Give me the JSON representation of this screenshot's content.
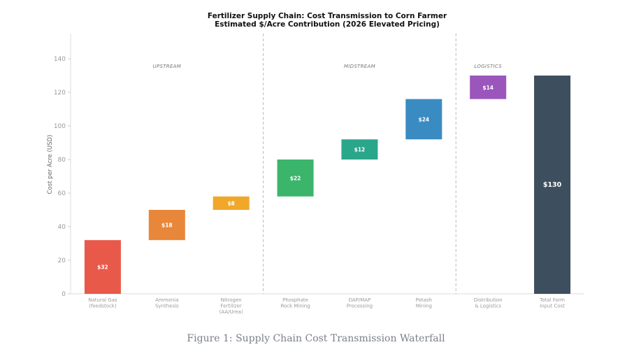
{
  "chart_data": {
    "type": "bar",
    "subtype": "waterfall",
    "title": "Fertilizer Supply Chain: Cost Transmission to Corn Farmer",
    "subtitle": "Estimated $/Acre Contribution (2026 Elevated Pricing)",
    "ylabel": "Cost per Acre (USD)",
    "xlabel": "",
    "ylim": [
      0,
      155
    ],
    "yticks": [
      0,
      20,
      40,
      60,
      80,
      100,
      120,
      140
    ],
    "categories": [
      [
        "Natural Gas",
        "(feedstock)"
      ],
      [
        "Ammonia",
        "Synthesis"
      ],
      [
        "Nitrogen",
        "Fertilizer",
        "(AA/Urea)"
      ],
      [
        "Phosphate",
        "Rock Mining"
      ],
      [
        "DAP/MAP",
        "Processing"
      ],
      [
        "Potash",
        "Mining"
      ],
      [
        "Distribution",
        "& Logistics"
      ],
      [
        "Total Farm",
        "Input Cost"
      ]
    ],
    "bars": [
      {
        "start": 0,
        "value": 32,
        "label": "$32",
        "color": "#e8594a"
      },
      {
        "start": 32,
        "value": 18,
        "label": "$18",
        "color": "#e8873a"
      },
      {
        "start": 50,
        "value": 8,
        "label": "$8",
        "color": "#f0a72a"
      },
      {
        "start": 58,
        "value": 22,
        "label": "$22",
        "color": "#3bb56b"
      },
      {
        "start": 80,
        "value": 12,
        "label": "$12",
        "color": "#2aa68a"
      },
      {
        "start": 92,
        "value": 24,
        "label": "$24",
        "color": "#3a8bc2"
      },
      {
        "start": 116,
        "value": 14,
        "label": "$14",
        "color": "#9a56bb"
      },
      {
        "start": 0,
        "value": 130,
        "label": "$130",
        "color": "#3d4e5e",
        "total": true
      }
    ],
    "stages": [
      {
        "label": "UPSTREAM",
        "from": 0,
        "to": 2
      },
      {
        "label": "MIDSTREAM",
        "from": 3,
        "to": 5
      },
      {
        "label": "LOGISTICS",
        "from": 6,
        "to": 6
      }
    ],
    "dividers_after": [
      2,
      5
    ],
    "grid": false
  },
  "caption": "Figure 1: Supply Chain Cost Transmission Waterfall"
}
